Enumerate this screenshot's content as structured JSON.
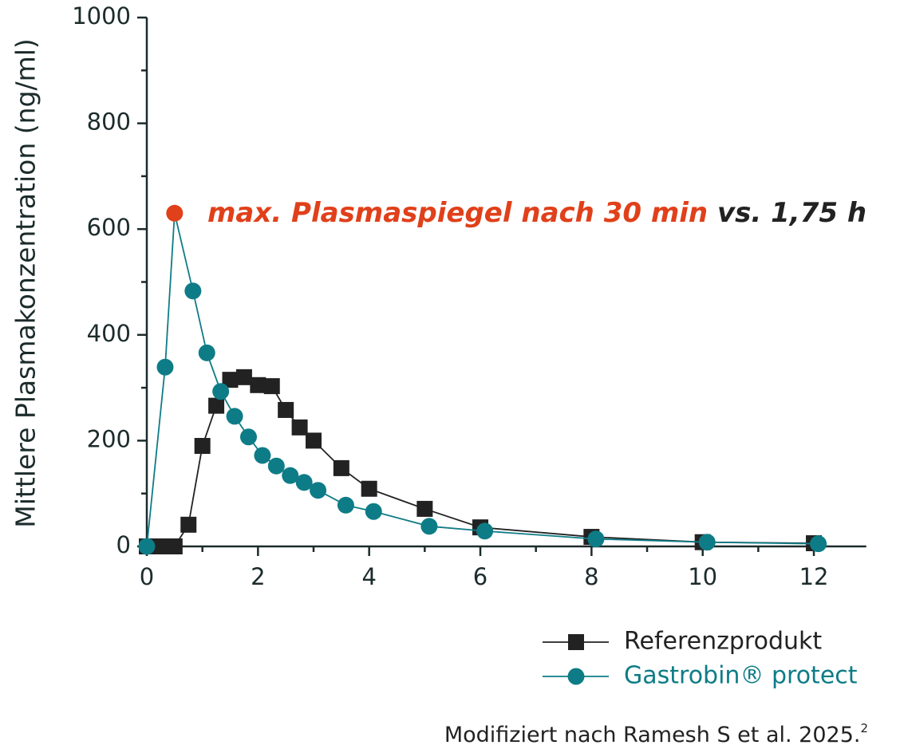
{
  "chart_data": {
    "type": "line",
    "ylabel": "Mittlere Plasmakonzentration (ng/ml)",
    "xlim": [
      0,
      13
    ],
    "ylim": [
      0,
      1000
    ],
    "xticks": [
      0,
      2,
      4,
      6,
      8,
      10,
      12
    ],
    "xminorticks": [
      1,
      3,
      5,
      7,
      9,
      11
    ],
    "yticks": [
      0,
      200,
      400,
      600,
      800,
      1000
    ],
    "yminorticks": [
      100,
      300,
      500,
      700,
      900
    ],
    "annotation": {
      "text": "max. Plasmaspiegel nach 30 min",
      "color": "#e0401a",
      "suffix": " vs. 1,75 h"
    },
    "footnote": {
      "text": "Modifiziert nach Ramesh S et al. 2025.",
      "superscript": "2"
    },
    "series": [
      {
        "name": "Referenzprodukt",
        "color": "#222222",
        "marker": "square",
        "x": [
          0,
          0.25,
          0.5,
          0.75,
          1,
          1.25,
          1.5,
          1.75,
          2,
          2.25,
          2.5,
          2.75,
          3,
          3.5,
          4,
          5,
          6,
          8,
          10,
          12
        ],
        "values": [
          0,
          0,
          0,
          41,
          190,
          266,
          315,
          320,
          305,
          303,
          258,
          225,
          200,
          148,
          109,
          71,
          36,
          18,
          8,
          6
        ]
      },
      {
        "name": "Gastrobin® protect",
        "color": "#0e7c86",
        "marker": "circle",
        "highlight_index": 2,
        "highlight_color": "#e0401a",
        "x": [
          0,
          0.33,
          0.5,
          0.83,
          1.08,
          1.33,
          1.58,
          1.83,
          2.08,
          2.33,
          2.58,
          2.83,
          3.08,
          3.58,
          4.08,
          5.08,
          6.08,
          8.08,
          10.08,
          12.08
        ],
        "values": [
          0,
          339,
          630,
          483,
          366,
          293,
          246,
          207,
          172,
          152,
          134,
          121,
          106,
          78,
          66,
          38,
          29,
          14,
          8,
          5
        ]
      }
    ]
  }
}
